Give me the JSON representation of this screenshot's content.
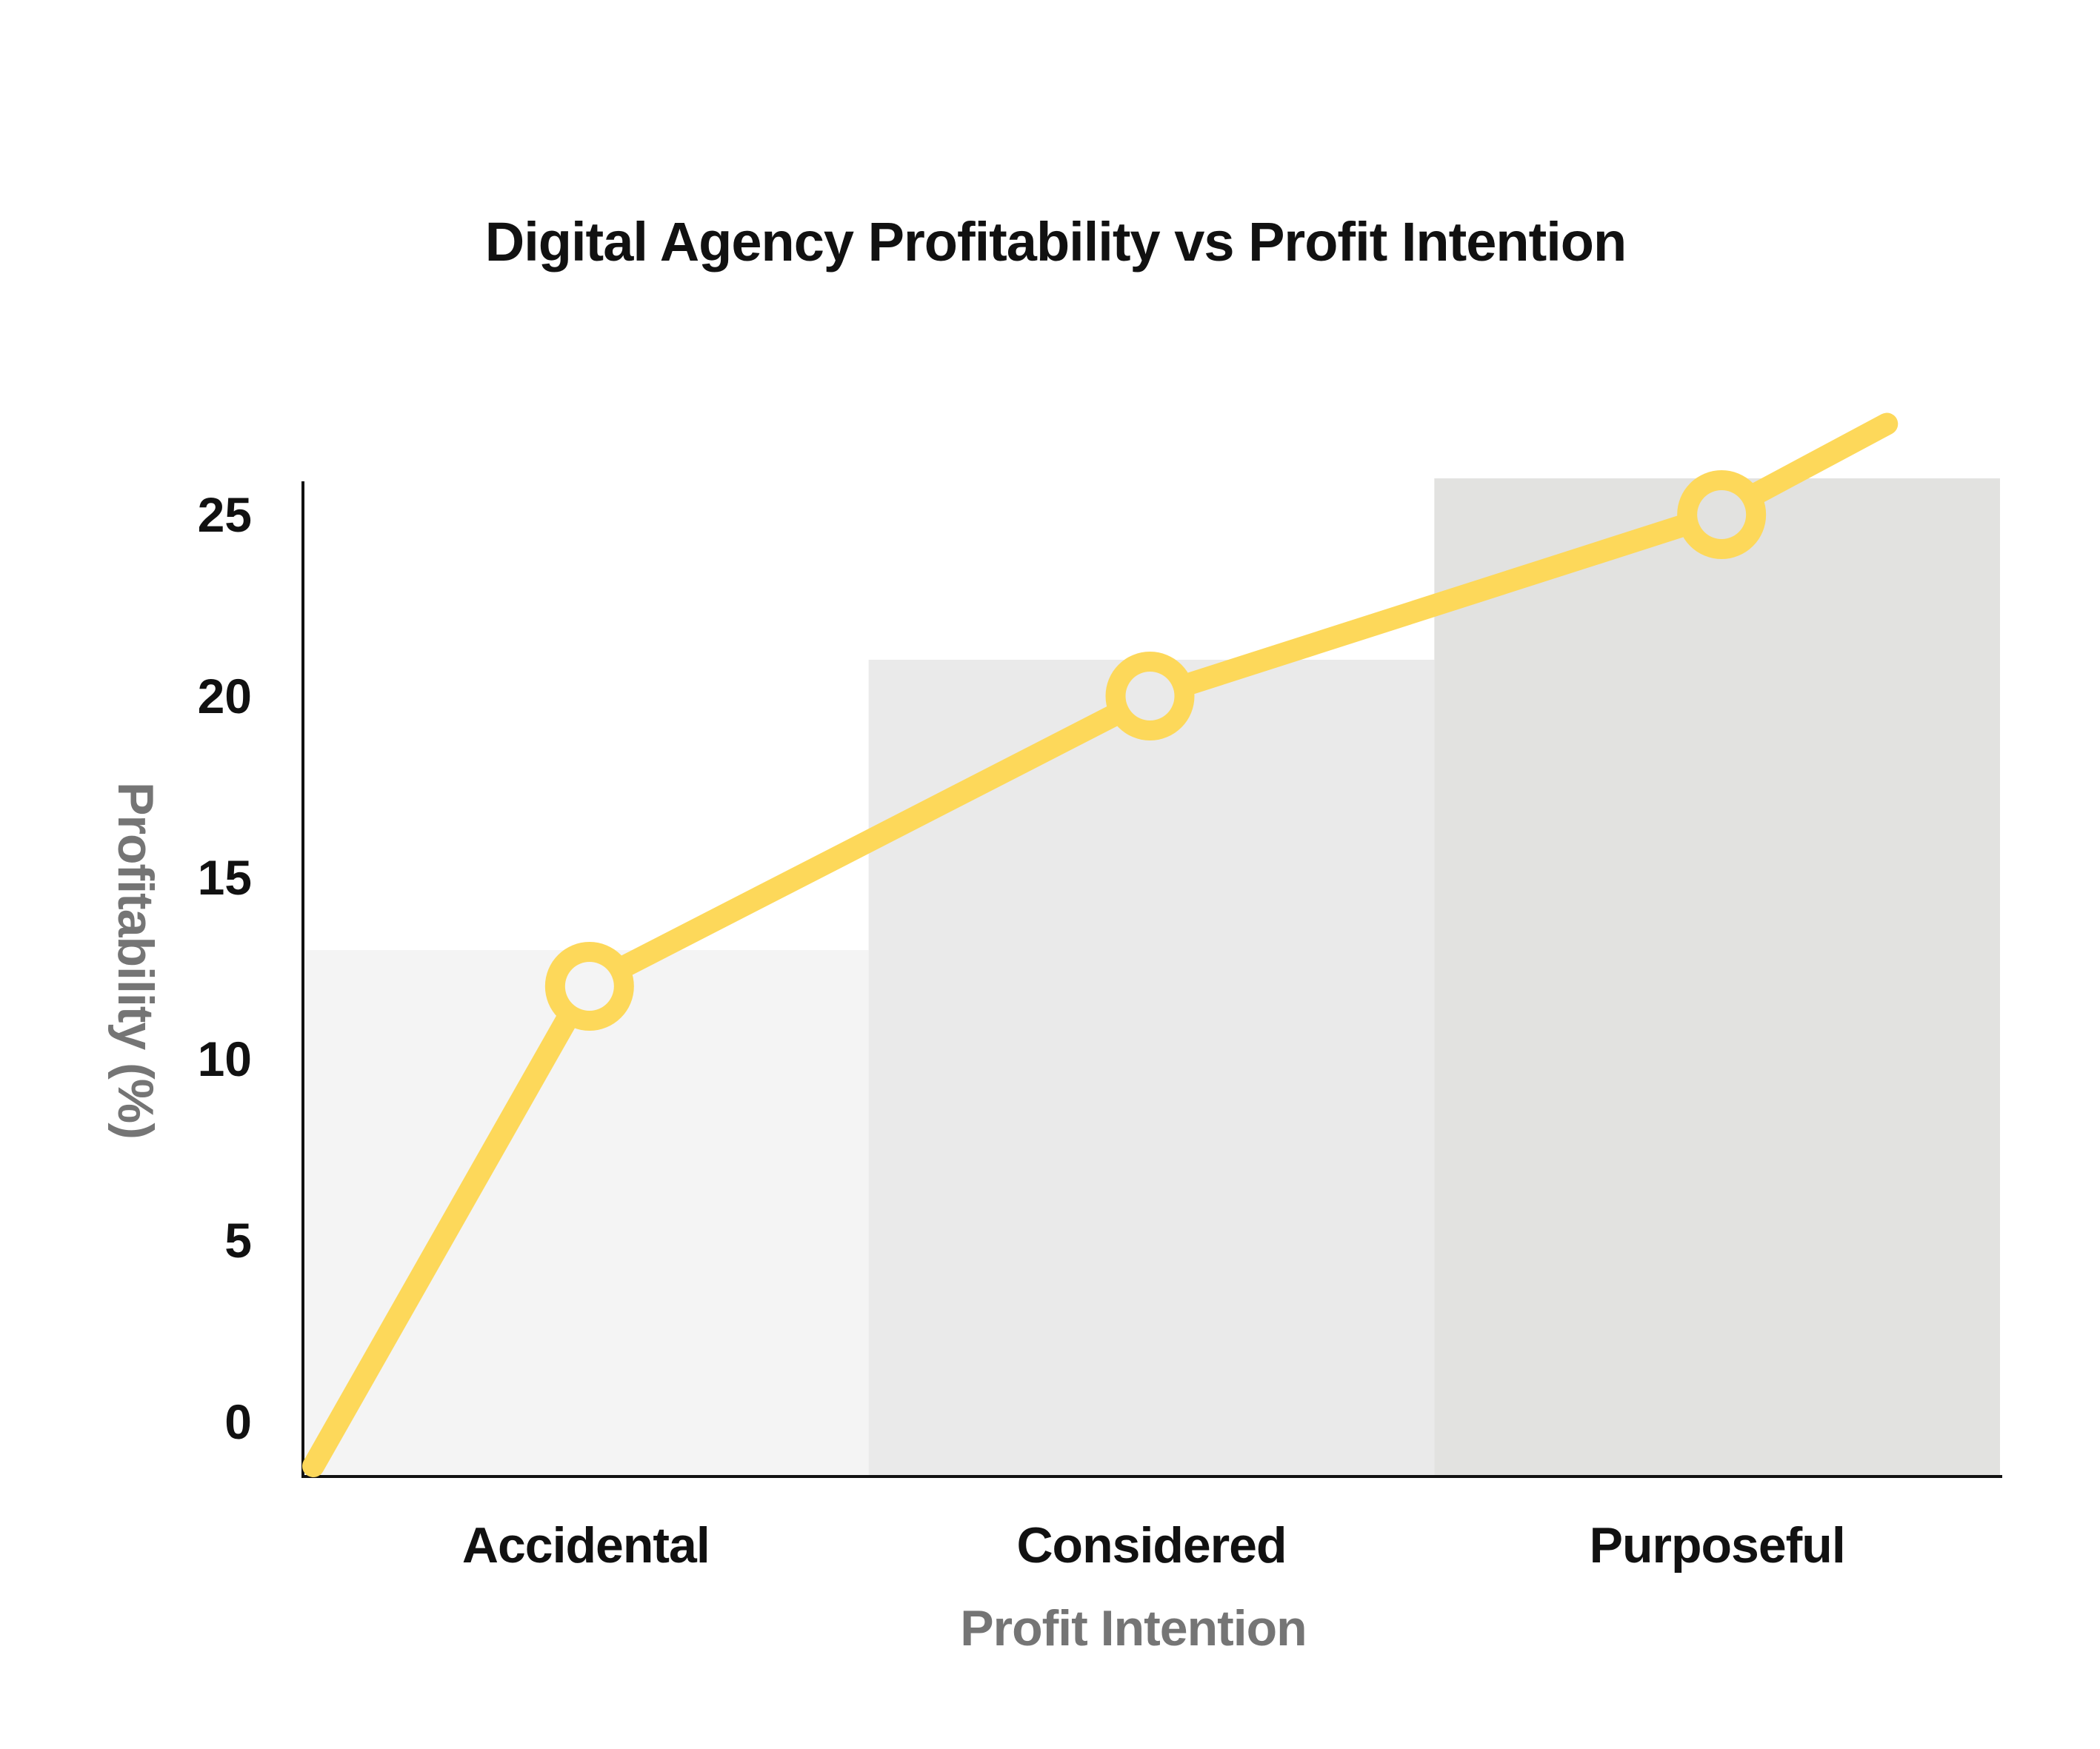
{
  "chart_data": {
    "type": "bar",
    "title": "Digital Agency Profitability vs Profit Intention",
    "xlabel": "Profit Intention",
    "ylabel": "Profitability (%)",
    "categories": [
      "Accidental",
      "Considered",
      "Purposeful"
    ],
    "values": [
      13,
      21,
      26
    ],
    "ylim": [
      0,
      26
    ],
    "yticks": [
      "0",
      "5",
      "10",
      "15",
      "20",
      "25"
    ],
    "ytick_values": [
      0,
      5,
      10,
      15,
      20,
      25
    ],
    "grid": false,
    "bar_colors": [
      "#f4f4f4",
      "#eaeaea",
      "#e2e2e0"
    ],
    "line": {
      "color": "#fdd85a",
      "points": [
        {
          "x": 0,
          "y": 0
        },
        {
          "x": 0.5,
          "y": 12
        },
        {
          "x": 1.5,
          "y": 20
        },
        {
          "x": 2.5,
          "y": 25
        },
        {
          "x": 2.8,
          "y": 27.5
        }
      ],
      "markers": [
        {
          "category": "Accidental",
          "y": 12
        },
        {
          "category": "Considered",
          "y": 20
        },
        {
          "category": "Purposeful",
          "y": 25
        }
      ]
    }
  }
}
